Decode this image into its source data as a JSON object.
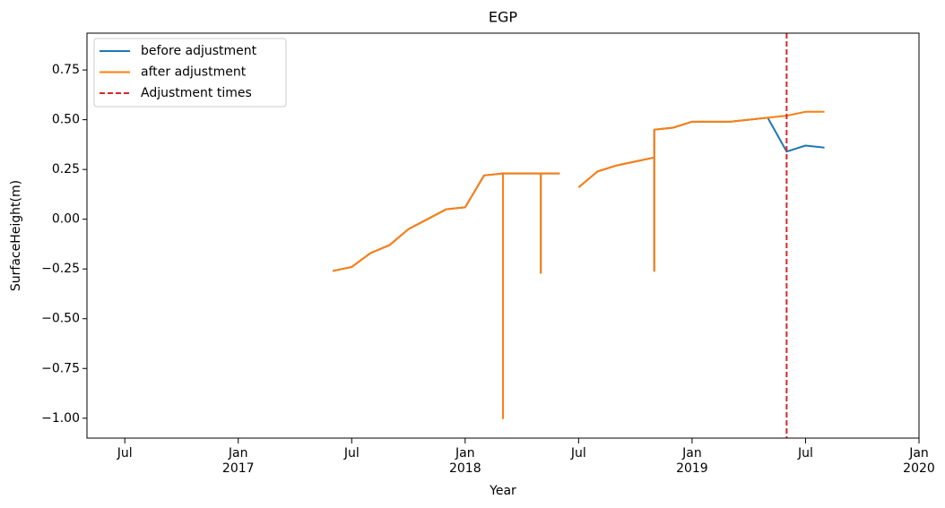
{
  "chart_data": {
    "type": "line",
    "title": "EGP",
    "x_label": "Year",
    "y_label": "SurfaceHeight(m)",
    "x": [
      "2017-06",
      "2017-07",
      "2017-08",
      "2017-09",
      "2017-10",
      "2017-11",
      "2017-12",
      "2018-01",
      "2018-02",
      "2018-03",
      "2018-03",
      "2018-03",
      "2018-04",
      "2018-05",
      "2018-05",
      "2018-05",
      "2018-06",
      "2018-06",
      "2018-07",
      "2018-08",
      "2018-09",
      "2018-10",
      "2018-11",
      "2018-11",
      "2018-11",
      "2018-12",
      "2019-01",
      "2019-02",
      "2019-03",
      "2019-04",
      "2019-05",
      "2019-06",
      "2019-07",
      "2019-08"
    ],
    "series": [
      {
        "name": "before adjustment",
        "color": "#1f77b4",
        "values": [
          -0.26,
          -0.24,
          -0.17,
          -0.13,
          -0.05,
          0.0,
          0.05,
          0.06,
          0.22,
          0.23,
          -1.0,
          0.23,
          0.23,
          0.23,
          -0.27,
          0.23,
          0.23,
          null,
          0.16,
          0.24,
          0.27,
          0.29,
          0.31,
          -0.26,
          0.45,
          0.46,
          0.49,
          0.49,
          0.49,
          0.5,
          0.51,
          0.34,
          0.37,
          0.36
        ]
      },
      {
        "name": "after adjustment",
        "color": "#ff7f0e",
        "values": [
          -0.26,
          -0.24,
          -0.17,
          -0.13,
          -0.05,
          0.0,
          0.05,
          0.06,
          0.22,
          0.23,
          -1.0,
          0.23,
          0.23,
          0.23,
          -0.27,
          0.23,
          0.23,
          null,
          0.16,
          0.24,
          0.27,
          0.29,
          0.31,
          -0.26,
          0.45,
          0.46,
          0.49,
          0.49,
          0.49,
          0.5,
          0.51,
          0.52,
          0.54,
          0.54
        ]
      }
    ],
    "adjustment_times": {
      "name": "Adjustment times",
      "color": "#d62728",
      "x": [
        "2019-06"
      ]
    },
    "xlim": [
      "2016-05",
      "2020-01"
    ],
    "xticks": [
      {
        "value": "2016-07",
        "label": "Jul"
      },
      {
        "value": "2017-01",
        "label": "Jan 2017"
      },
      {
        "value": "2017-07",
        "label": "Jul"
      },
      {
        "value": "2018-01",
        "label": "Jan 2018"
      },
      {
        "value": "2018-07",
        "label": "Jul"
      },
      {
        "value": "2019-01",
        "label": "Jan 2019"
      },
      {
        "value": "2019-07",
        "label": "Jul"
      },
      {
        "value": "2020-01",
        "label": "Jan 2020"
      }
    ],
    "ylim": [
      -1.1,
      0.935
    ],
    "yticks": [
      {
        "value": -1.0,
        "label": "−1.00"
      },
      {
        "value": -0.75,
        "label": "−0.75"
      },
      {
        "value": -0.5,
        "label": "−0.50"
      },
      {
        "value": -0.25,
        "label": "−0.25"
      },
      {
        "value": 0.0,
        "label": "0.00"
      },
      {
        "value": 0.25,
        "label": "0.25"
      },
      {
        "value": 0.5,
        "label": "0.50"
      },
      {
        "value": 0.75,
        "label": "0.75"
      }
    ],
    "legend": "upper left"
  }
}
